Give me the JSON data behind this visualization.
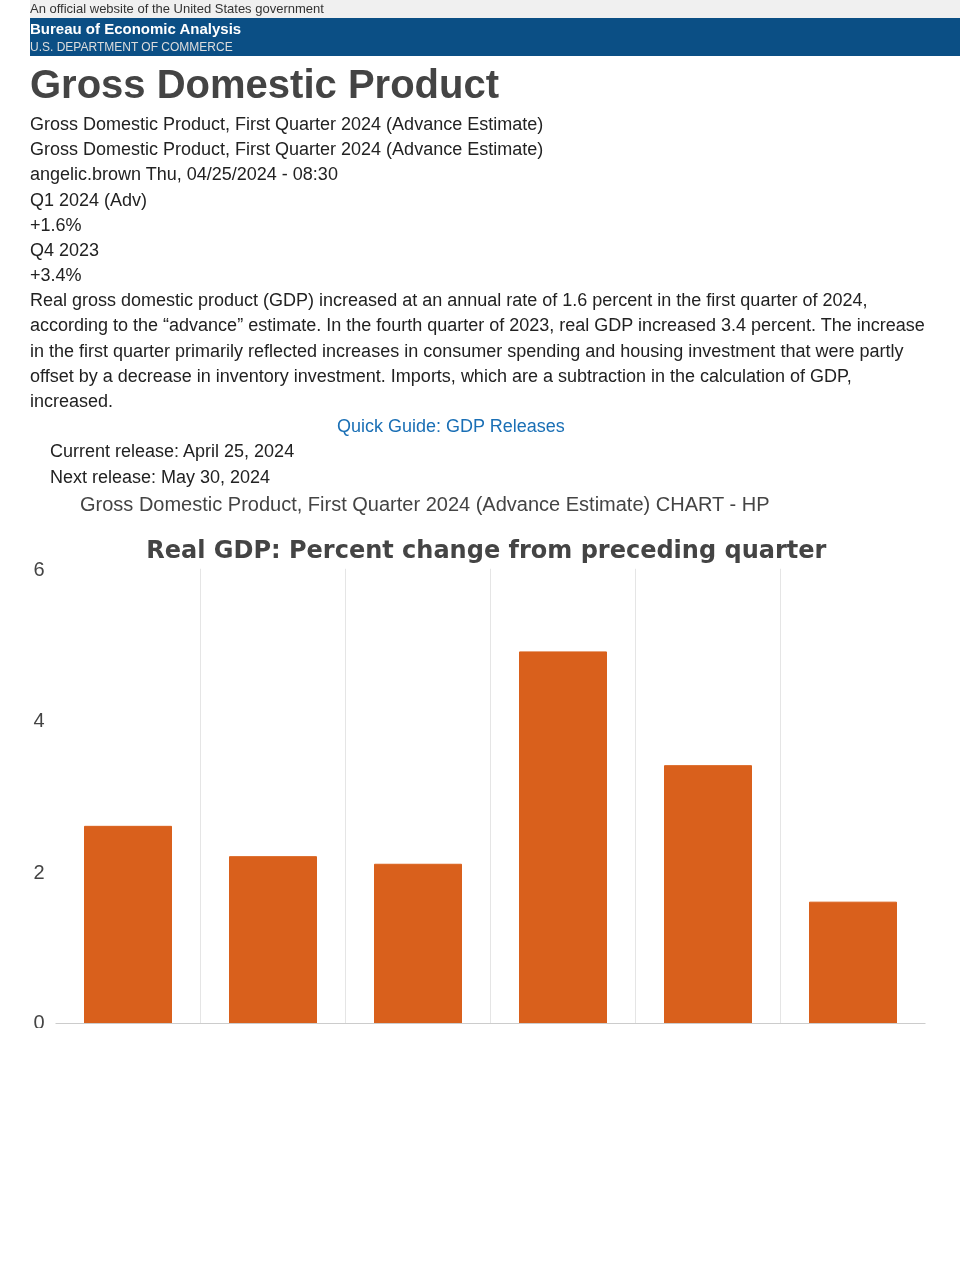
{
  "chart_data": {
    "type": "bar",
    "title": "Real GDP:  Percent change from preceding quarter",
    "annotations": [
      "An official website of the United States government",
      "Bureau of Economic Analysis",
      "U.S. DEPARTMENT OF COMMERCE",
      "Gross Domestic Product",
      "Gross Domestic Product, First Quarter 2024 (Advance Estimate)",
      "Gross Domestic Product, First Quarter 2024 (Advance Estimate)",
      "angelic.brown Thu, 04/25/2024 - 08:30",
      "Q1 2024 (Adv)",
      "+1.6%",
      "Q4 2023",
      "+3.4%",
      "Real gross domestic product (GDP) increased at an annual rate of 1.6 percent in the first quarter of 2024, according to the “advance” estimate. In the fourth quarter of 2023, real GDP increased 3.4 percent. The increase in the first quarter primarily reflected increases in consumer spending and housing investment that were partly offset by a decrease in inventory investment. Imports, which are a subtraction in the calculation of GDP, increased.",
      "Quick Guide: GDP Releases",
      "Current release: April 25, 2024",
      "Next release: May 30, 2024",
      "Gross Domestic Product, First Quarter 2024 (Advance Estimate) CHART - HP"
    ],
    "categories": [
      null,
      null,
      null,
      null,
      null,
      null
    ],
    "values": [
      2.6,
      2.2,
      2.1,
      4.9,
      3.4,
      1.6
    ],
    "color": "#d9601c",
    "ylim": [
      0,
      6
    ],
    "yticks": [
      0,
      2,
      4,
      6
    ],
    "grid": "x"
  }
}
